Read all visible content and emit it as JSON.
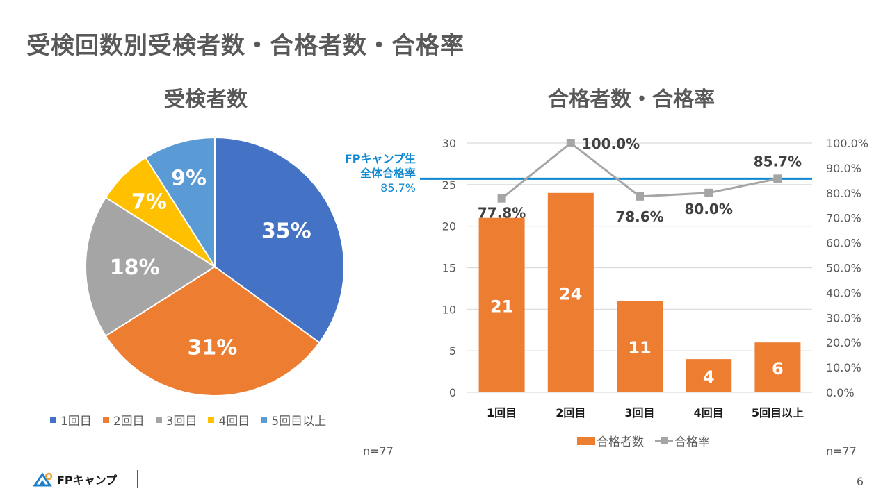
{
  "slide": {
    "title": "受検回数別受検者数・合格者数・合格率",
    "page_number": "6",
    "logo_text": "FPキャンプ"
  },
  "colors": {
    "blue": "#4472c4",
    "orange": "#ed7d31",
    "gray": "#a5a5a5",
    "yellow": "#ffc000",
    "lightblue": "#5b9bd5",
    "ref_line": "#0f88d0",
    "text": "#595959"
  },
  "chart_data": [
    {
      "type": "pie",
      "title": "受検者数",
      "categories": [
        "1回目",
        "2回目",
        "3回目",
        "4回目",
        "5回目以上"
      ],
      "values": [
        35,
        31,
        18,
        7,
        9
      ],
      "labels": [
        "35%",
        "31%",
        "18%",
        "7%",
        "9%"
      ],
      "colors": [
        "#4472c4",
        "#ed7d31",
        "#a5a5a5",
        "#ffc000",
        "#5b9bd5"
      ],
      "legend_position": "bottom",
      "note": "n=77"
    },
    {
      "type": "bar+line",
      "title": "合格者数・合格率",
      "categories": [
        "1回目",
        "2回目",
        "3回目",
        "4回目",
        "5回目以上"
      ],
      "series": [
        {
          "name": "合格者数",
          "type": "bar",
          "axis": "left",
          "values": [
            21,
            24,
            11,
            4,
            6
          ],
          "labels": [
            "21",
            "24",
            "11",
            "4",
            "6"
          ],
          "color": "#ed7d31"
        },
        {
          "name": "合格率",
          "type": "line",
          "axis": "right",
          "values": [
            77.8,
            100.0,
            78.6,
            80.0,
            85.7
          ],
          "labels": [
            "77.8%",
            "100.0%",
            "78.6%",
            "80.0%",
            "85.7%"
          ],
          "color": "#a5a5a5"
        }
      ],
      "left_axis": {
        "min": 0,
        "max": 30,
        "ticks": [
          "0",
          "5",
          "10",
          "15",
          "20",
          "25",
          "30"
        ]
      },
      "right_axis": {
        "min": 0,
        "max": 100,
        "ticks": [
          "0.0%",
          "10.0%",
          "20.0%",
          "30.0%",
          "40.0%",
          "50.0%",
          "60.0%",
          "70.0%",
          "80.0%",
          "90.0%",
          "100.0%"
        ]
      },
      "reference_line": {
        "value": 85.7,
        "axis": "right",
        "label_lines": [
          "FPキャンプ生",
          "全体合格率",
          "85.7%"
        ]
      },
      "grid": true,
      "legend_position": "bottom",
      "note": "n=77"
    }
  ]
}
